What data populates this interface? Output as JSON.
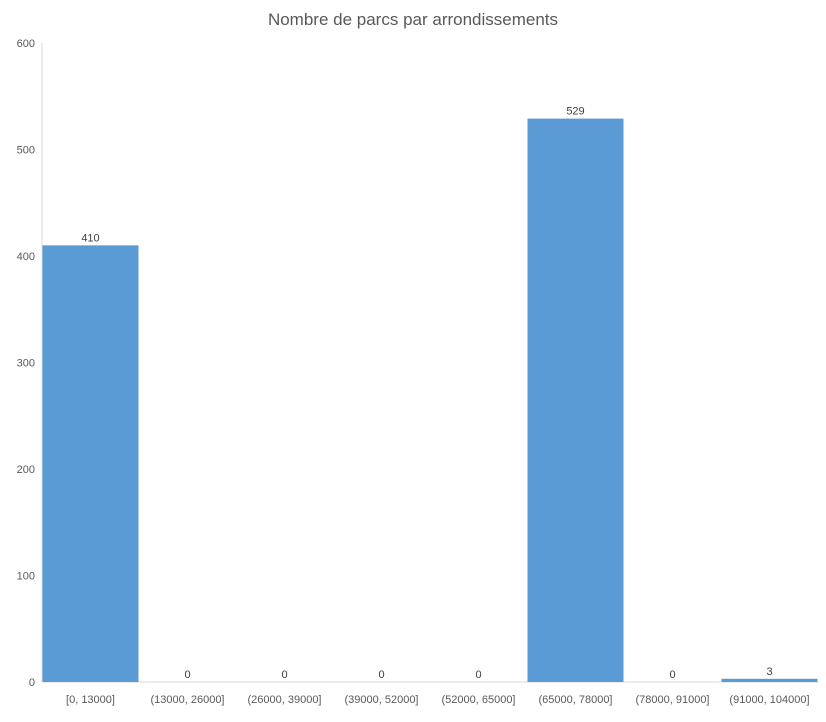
{
  "chart_data": {
    "type": "bar",
    "title": "Nombre de parcs par arrondissements",
    "xlabel": "",
    "ylabel": "",
    "categories": [
      "[0, 13000]",
      "(13000, 26000]",
      "(26000, 39000]",
      "(39000, 52000]",
      "(52000, 65000]",
      "(65000, 78000]",
      "(78000, 91000]",
      "(91000, 104000]"
    ],
    "values": [
      410,
      0,
      0,
      0,
      0,
      529,
      0,
      3
    ],
    "data_labels": [
      "410",
      "0",
      "0",
      "0",
      "0",
      "529",
      "0",
      "3"
    ],
    "ylim": [
      0,
      600
    ],
    "yticks": [
      0,
      100,
      200,
      300,
      400,
      500,
      600
    ],
    "yticklabels": [
      "0",
      "100",
      "200",
      "300",
      "400",
      "500",
      "600"
    ],
    "grid": false,
    "legend": "none",
    "bar_color": "#5b9bd5",
    "axis_color": "#d9d9d9"
  }
}
